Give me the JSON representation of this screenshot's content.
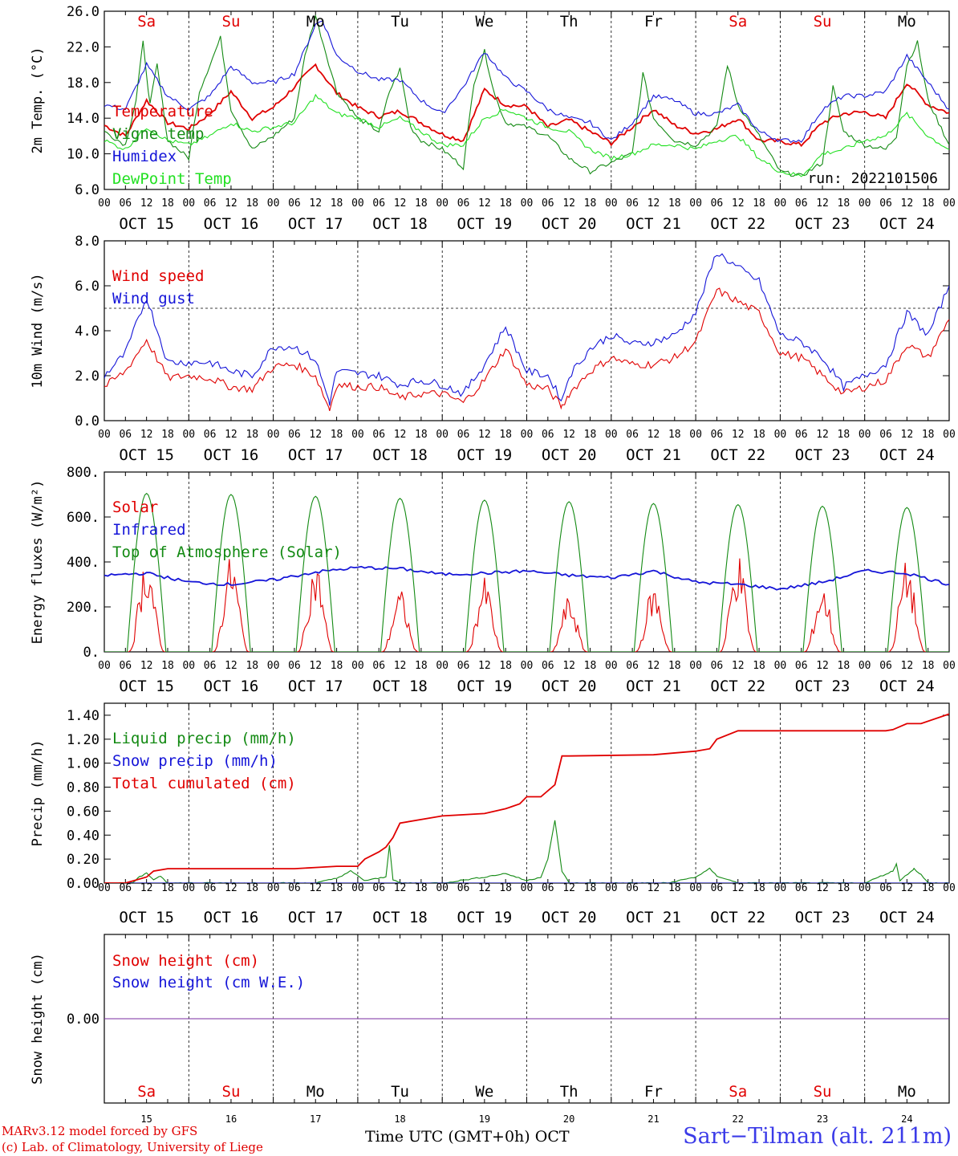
{
  "chart_data": [
    {
      "type": "line",
      "panel": "temperature",
      "ylabel": "2m Temp. (°C)",
      "ylim": [
        6.0,
        26.0
      ],
      "yticks": [
        6.0,
        10.0,
        14.0,
        18.0,
        22.0,
        26.0
      ],
      "ytick_labels": [
        "6.0",
        "10.0",
        "14.0",
        "18.0",
        "22.0",
        "26.0"
      ],
      "annotation": "run: 2022101506",
      "series": [
        {
          "name": "Temperature",
          "color": "#e00000",
          "x": [
            0,
            6,
            12,
            18,
            24,
            30,
            36,
            42,
            48,
            54,
            60,
            66,
            72,
            78,
            84,
            90,
            96,
            102,
            108,
            114,
            120,
            126,
            132,
            138,
            144,
            150,
            156,
            162,
            168,
            174,
            180,
            186,
            192,
            198,
            204,
            210,
            216,
            222,
            228,
            234,
            240
          ],
          "y": [
            13.2,
            12.0,
            16.0,
            13.5,
            12.8,
            14.5,
            17.0,
            14.0,
            15.2,
            17.5,
            20.0,
            16.8,
            15.2,
            14.2,
            14.8,
            13.5,
            12.2,
            11.5,
            17.2,
            15.5,
            15.3,
            13.0,
            13.8,
            12.5,
            11.2,
            13.0,
            15.0,
            13.2,
            12.3,
            12.8,
            14.0,
            11.5,
            11.4,
            11.0,
            13.5,
            14.5,
            14.7,
            14.0,
            18.0,
            15.5,
            14.6
          ]
        },
        {
          "name": "Vigne temp",
          "color": "#138a13",
          "x": [
            0,
            6,
            9,
            11,
            13,
            15,
            18,
            24,
            27,
            30,
            33,
            36,
            42,
            48,
            54,
            57,
            60,
            66,
            72,
            78,
            81,
            84,
            87,
            90,
            96,
            102,
            105,
            108,
            111,
            114,
            120,
            126,
            132,
            138,
            144,
            150,
            153,
            156,
            162,
            168,
            174,
            177,
            180,
            186,
            192,
            198,
            204,
            207,
            210,
            216,
            222,
            225,
            228,
            231,
            234,
            240
          ],
          "y": [
            12.5,
            11.0,
            16.0,
            22.5,
            15.5,
            20.0,
            11.5,
            9.5,
            17.0,
            20.0,
            23.0,
            15.0,
            10.5,
            12.0,
            14.0,
            21.0,
            25.5,
            17.0,
            14.0,
            12.5,
            17.0,
            19.5,
            13.0,
            11.5,
            10.5,
            8.5,
            18.0,
            21.5,
            16.5,
            13.5,
            13.0,
            12.0,
            9.5,
            8.0,
            9.0,
            10.0,
            19.0,
            14.0,
            11.5,
            11.0,
            13.0,
            20.0,
            15.5,
            12.0,
            8.0,
            7.5,
            9.0,
            17.5,
            12.5,
            11.0,
            10.5,
            12.0,
            20.0,
            22.5,
            16.0,
            11.0
          ]
        },
        {
          "name": "Humidex",
          "color": "#1515d8",
          "x": [
            0,
            6,
            12,
            18,
            24,
            30,
            36,
            42,
            48,
            54,
            60,
            62,
            66,
            72,
            78,
            84,
            90,
            96,
            102,
            108,
            114,
            120,
            126,
            132,
            138,
            144,
            150,
            156,
            162,
            168,
            174,
            180,
            186,
            192,
            198,
            204,
            210,
            216,
            222,
            228,
            234,
            240
          ],
          "y": [
            15.5,
            15.0,
            20.0,
            16.5,
            15.0,
            16.5,
            19.8,
            18.0,
            18.0,
            19.0,
            24.5,
            25.0,
            21.0,
            19.3,
            18.3,
            18.3,
            16.0,
            14.5,
            17.5,
            21.5,
            18.5,
            17.0,
            15.0,
            14.0,
            13.5,
            11.5,
            13.5,
            16.5,
            16.0,
            14.5,
            14.5,
            15.5,
            12.5,
            11.5,
            11.5,
            15.0,
            16.5,
            16.5,
            17.0,
            21.0,
            18.0,
            15.0
          ]
        },
        {
          "name": "DewPoint Temp",
          "color": "#22e022",
          "x": [
            0,
            6,
            12,
            18,
            24,
            30,
            36,
            42,
            48,
            54,
            60,
            66,
            72,
            78,
            84,
            90,
            96,
            102,
            108,
            114,
            120,
            126,
            132,
            138,
            144,
            150,
            156,
            162,
            168,
            174,
            180,
            186,
            192,
            198,
            204,
            210,
            216,
            222,
            228,
            234,
            240
          ],
          "y": [
            11.5,
            10.5,
            13.0,
            11.5,
            11.0,
            12.0,
            13.5,
            12.5,
            13.0,
            13.5,
            16.5,
            14.5,
            14.0,
            13.0,
            14.0,
            12.5,
            11.0,
            11.0,
            14.0,
            15.0,
            14.0,
            13.0,
            12.5,
            10.5,
            9.5,
            10.0,
            11.0,
            11.0,
            10.5,
            11.5,
            12.0,
            9.5,
            8.0,
            7.5,
            10.0,
            10.5,
            11.5,
            12.0,
            14.5,
            12.0,
            10.5
          ]
        }
      ]
    },
    {
      "type": "line",
      "panel": "wind",
      "ylabel": "10m Wind (m/s)",
      "ylim": [
        0.0,
        8.0
      ],
      "yticks": [
        0.0,
        2.0,
        4.0,
        6.0,
        8.0
      ],
      "ytick_labels": [
        "0.0",
        "2.0",
        "4.0",
        "6.0",
        "8.0"
      ],
      "reference_line": 5.0,
      "series": [
        {
          "name": "Wind speed",
          "color": "#e00000",
          "x": [
            0,
            6,
            12,
            18,
            24,
            30,
            36,
            42,
            48,
            54,
            60,
            64,
            66,
            72,
            78,
            84,
            90,
            96,
            102,
            108,
            114,
            120,
            126,
            130,
            132,
            138,
            144,
            150,
            156,
            162,
            168,
            174,
            180,
            186,
            192,
            198,
            204,
            210,
            216,
            222,
            228,
            234,
            240
          ],
          "y": [
            1.5,
            2.2,
            3.6,
            1.9,
            2.0,
            1.9,
            1.5,
            1.4,
            2.4,
            2.5,
            2.0,
            0.5,
            1.6,
            1.5,
            1.5,
            1.0,
            1.2,
            1.2,
            0.8,
            1.8,
            3.2,
            1.6,
            1.4,
            0.6,
            1.2,
            2.2,
            2.8,
            2.5,
            2.5,
            2.8,
            3.5,
            5.8,
            5.3,
            4.8,
            3.0,
            2.8,
            2.0,
            1.2,
            1.5,
            1.8,
            3.4,
            2.8,
            4.5
          ]
        },
        {
          "name": "Wind gust",
          "color": "#1515d8",
          "x": [
            0,
            6,
            12,
            18,
            24,
            30,
            36,
            42,
            48,
            54,
            60,
            64,
            66,
            72,
            78,
            84,
            90,
            96,
            102,
            108,
            114,
            120,
            126,
            130,
            132,
            138,
            144,
            150,
            156,
            162,
            168,
            174,
            180,
            186,
            192,
            198,
            204,
            210,
            216,
            222,
            228,
            234,
            240
          ],
          "y": [
            2.0,
            3.0,
            5.5,
            2.6,
            2.6,
            2.6,
            2.2,
            2.0,
            3.3,
            3.3,
            2.7,
            0.8,
            2.2,
            2.1,
            2.0,
            1.6,
            1.8,
            1.6,
            1.2,
            2.5,
            4.2,
            2.2,
            2.0,
            0.9,
            2.0,
            3.2,
            3.8,
            3.4,
            3.5,
            3.8,
            4.8,
            7.5,
            6.8,
            6.2,
            3.8,
            3.5,
            2.8,
            1.5,
            2.0,
            2.5,
            4.8,
            3.8,
            6.0
          ]
        }
      ]
    },
    {
      "type": "line",
      "panel": "energy",
      "ylabel": "Energy fluxes (W/m²)",
      "ylim": [
        0,
        800
      ],
      "yticks": [
        0,
        200,
        400,
        600,
        800
      ],
      "ytick_labels": [
        "0.",
        "200.",
        "400.",
        "600.",
        "800."
      ],
      "series": [
        {
          "name": "Solar",
          "color": "#e00000",
          "day_peaks": [
            440,
            430,
            410,
            280,
            330,
            250,
            300,
            445,
            300,
            410
          ],
          "daylight_hours": [
            7,
            17
          ]
        },
        {
          "name": "Infrared",
          "color": "#1515d8",
          "x": [
            0,
            12,
            24,
            36,
            48,
            60,
            72,
            84,
            96,
            108,
            120,
            132,
            144,
            156,
            168,
            180,
            192,
            204,
            216,
            228,
            240
          ],
          "y": [
            340,
            350,
            310,
            300,
            320,
            355,
            375,
            370,
            345,
            350,
            360,
            340,
            330,
            360,
            310,
            300,
            280,
            310,
            360,
            350,
            300
          ]
        },
        {
          "name": "Top of Atmosphere (Solar)",
          "color": "#138a13",
          "day_peaks": [
            705,
            700,
            692,
            683,
            675,
            668,
            660,
            655,
            648,
            642
          ],
          "daylight_hours": [
            6.5,
            17.5
          ]
        }
      ]
    },
    {
      "type": "line",
      "panel": "precip",
      "ylabel": "Precip (mm/h)",
      "ylim": [
        0.0,
        1.5
      ],
      "yticks": [
        0.0,
        0.2,
        0.4,
        0.6,
        0.8,
        1.0,
        1.2,
        1.4
      ],
      "ytick_labels": [
        "0.00",
        "0.20",
        "0.40",
        "0.60",
        "0.80",
        "1.00",
        "1.20",
        "1.40"
      ],
      "series": [
        {
          "name": "Liquid precip (mm/h)",
          "color": "#138a13",
          "x": [
            0,
            8,
            10,
            12,
            14,
            16,
            18,
            48,
            60,
            66,
            70,
            74,
            80,
            81,
            82,
            84,
            96,
            108,
            114,
            120,
            124,
            126,
            128,
            130,
            132,
            140,
            160,
            168,
            172,
            174,
            180,
            192,
            204,
            210,
            216,
            224,
            225,
            226,
            230,
            232,
            234,
            240
          ],
          "y": [
            0,
            0,
            0.05,
            0.08,
            0.03,
            0.06,
            0,
            0,
            0,
            0.04,
            0.1,
            0.02,
            0.05,
            0.32,
            0.03,
            0,
            0,
            0.05,
            0.08,
            0.02,
            0.05,
            0.2,
            0.52,
            0.1,
            0,
            0,
            0,
            0.05,
            0.12,
            0.06,
            0,
            0,
            0,
            0,
            0,
            0.1,
            0.16,
            0.02,
            0.12,
            0.07,
            0,
            0
          ]
        },
        {
          "name": "Snow precip (mm/h)",
          "color": "#1515d8",
          "x": [
            0,
            240
          ],
          "y": [
            0,
            0
          ]
        },
        {
          "name": "Total cumulated (cm)",
          "color": "#e00000",
          "x": [
            0,
            6,
            12,
            14,
            18,
            48,
            54,
            60,
            66,
            72,
            74,
            78,
            80,
            82,
            84,
            96,
            108,
            114,
            118,
            120,
            124,
            128,
            130,
            132,
            156,
            168,
            172,
            174,
            180,
            192,
            204,
            216,
            222,
            224,
            228,
            232,
            240
          ],
          "y": [
            0,
            0,
            0.05,
            0.1,
            0.12,
            0.12,
            0.12,
            0.13,
            0.14,
            0.14,
            0.2,
            0.26,
            0.3,
            0.38,
            0.5,
            0.56,
            0.58,
            0.62,
            0.66,
            0.72,
            0.72,
            0.82,
            1.06,
            1.06,
            1.07,
            1.1,
            1.12,
            1.2,
            1.27,
            1.27,
            1.27,
            1.27,
            1.27,
            1.28,
            1.33,
            1.33,
            1.41
          ]
        }
      ]
    },
    {
      "type": "line",
      "panel": "snow",
      "ylabel": "Snow height (cm)",
      "ylim": [
        -1.0,
        1.0
      ],
      "yticks": [
        0.0
      ],
      "ytick_labels": [
        "0.00"
      ],
      "series": [
        {
          "name": "Snow height (cm)",
          "color": "#e00000",
          "x": [
            0,
            240
          ],
          "y": [
            0,
            0
          ]
        },
        {
          "name": "Snow height (cm W.E.)",
          "color": "#1515d8",
          "x": [
            0,
            240
          ],
          "y": [
            0,
            0
          ]
        }
      ]
    }
  ],
  "x_axis": {
    "hour_labels": [
      "00",
      "06",
      "12",
      "18"
    ],
    "end_label": "00",
    "date_labels": [
      "OCT 15",
      "OCT 16",
      "OCT 17",
      "OCT 18",
      "OCT 19",
      "OCT 20",
      "OCT 21",
      "OCT 22",
      "OCT 23",
      "OCT 24"
    ],
    "weekdays": [
      "Sa",
      "Su",
      "Mo",
      "Tu",
      "We",
      "Th",
      "Fr",
      "Sa",
      "Su",
      "Mo"
    ],
    "weekend_flags": [
      true,
      true,
      false,
      false,
      false,
      false,
      false,
      true,
      true,
      false
    ],
    "day_numbers": [
      "15",
      "16",
      "17",
      "18",
      "19",
      "20",
      "21",
      "22",
      "23",
      "24"
    ],
    "bottom_label": "Time UTC (GMT+0h)",
    "month_label": "OCT"
  },
  "colors": {
    "red": "#e00000",
    "blue": "#1515d8",
    "green": "#138a13",
    "lightgreen": "#22e022",
    "snowline": "#7a2ca0"
  },
  "footer": {
    "model": "MARv3.12 model forced by GFS",
    "credit": "(c) Lab. of Climatology, University of Liege",
    "location": "Sart−Tilman (alt. 211m)"
  }
}
